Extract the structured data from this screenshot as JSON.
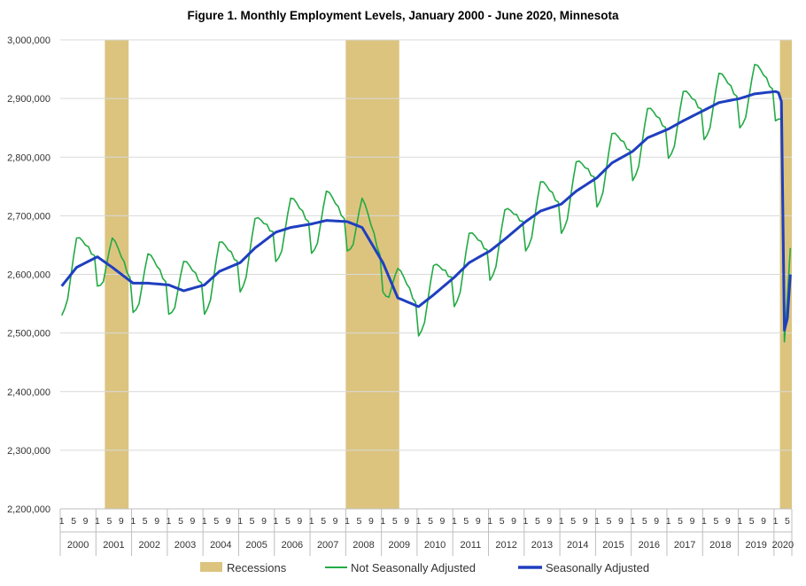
{
  "chart_data": {
    "type": "line",
    "title": "Figure 1. Monthly Employment Levels, January 2000 - June 2020, Minnesota",
    "xlabel": "",
    "ylabel": "",
    "ylim": [
      2200000,
      3000000
    ],
    "yticks": [
      2200000,
      2300000,
      2400000,
      2500000,
      2600000,
      2700000,
      2800000,
      2900000,
      3000000
    ],
    "ytick_labels": [
      "2,200,000",
      "2,300,000",
      "2,400,000",
      "2,500,000",
      "2,600,000",
      "2,700,000",
      "2,800,000",
      "2,900,000",
      "3,000,000"
    ],
    "month_tick_labels": [
      "1",
      "5",
      "9"
    ],
    "years": [
      "2000",
      "2001",
      "2002",
      "2003",
      "2004",
      "2005",
      "2006",
      "2007",
      "2008",
      "2009",
      "2010",
      "2011",
      "2012",
      "2013",
      "2014",
      "2015",
      "2016",
      "2017",
      "2018",
      "2019",
      "2020"
    ],
    "x_start": "2000-01",
    "x_end": "2020-06",
    "grid": "horizontal",
    "legend_position": "bottom",
    "recessions": [
      {
        "name": "Recessions",
        "start": "2001-04",
        "end": "2001-11"
      },
      {
        "name": "Recessions",
        "start": "2008-01",
        "end": "2009-06"
      },
      {
        "name": "Recessions",
        "start": "2020-03",
        "end": "2020-06"
      }
    ],
    "recession_label": "Recessions",
    "series": [
      {
        "name": "Seasonally Adjusted",
        "color": "#1f3fbf",
        "annual_anchors": {
          "2000-01": 2580000,
          "2000-06": 2612000,
          "2001-01": 2630000,
          "2001-06": 2612000,
          "2002-01": 2585000,
          "2002-06": 2585000,
          "2003-01": 2582000,
          "2003-06": 2572000,
          "2004-01": 2582000,
          "2004-06": 2605000,
          "2005-01": 2620000,
          "2005-06": 2645000,
          "2006-01": 2672000,
          "2006-06": 2680000,
          "2007-01": 2686000,
          "2007-06": 2692000,
          "2008-01": 2690000,
          "2008-06": 2680000,
          "2009-01": 2620000,
          "2009-06": 2560000,
          "2010-01": 2545000,
          "2010-06": 2565000,
          "2011-01": 2595000,
          "2011-06": 2620000,
          "2012-01": 2640000,
          "2012-06": 2660000,
          "2013-01": 2690000,
          "2013-06": 2708000,
          "2014-01": 2720000,
          "2014-06": 2742000,
          "2015-01": 2765000,
          "2015-06": 2790000,
          "2016-01": 2810000,
          "2016-06": 2833000,
          "2017-01": 2848000,
          "2017-06": 2862000,
          "2018-01": 2880000,
          "2018-06": 2893000,
          "2019-01": 2900000,
          "2019-06": 2908000,
          "2020-01": 2912000,
          "2020-02": 2910000,
          "2020-03": 2895000,
          "2020-04": 2505000,
          "2020-05": 2525000,
          "2020-06": 2600000
        }
      },
      {
        "name": "Not Seasonally Adjusted",
        "color": "#22aa44",
        "seasonal_pattern": [
          -50000,
          -45000,
          -35000,
          -5000,
          25000,
          50000,
          48000,
          40000,
          30000,
          25000,
          10000,
          5000
        ],
        "overrides": {
          "2020-03": 2865000,
          "2020-04": 2485000,
          "2020-05": 2560000,
          "2020-06": 2645000
        }
      }
    ]
  }
}
